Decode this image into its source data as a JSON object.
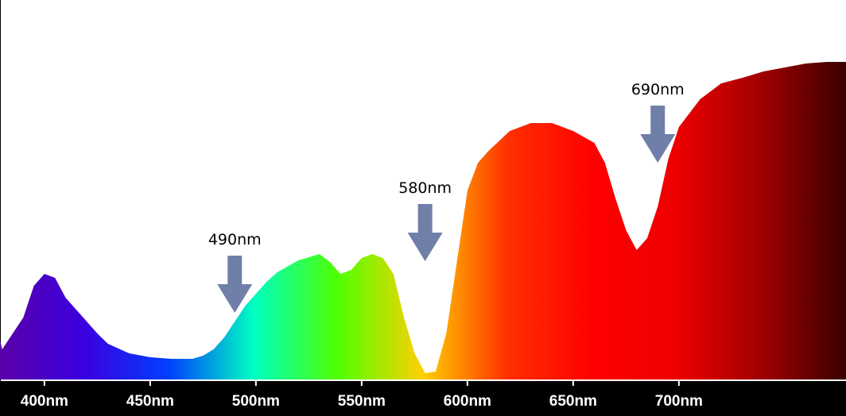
{
  "chart_data": {
    "type": "area",
    "x": [
      379,
      380,
      390,
      395,
      400,
      405,
      410,
      415,
      420,
      425,
      430,
      440,
      450,
      460,
      470,
      475,
      480,
      485,
      490,
      495,
      500,
      505,
      510,
      520,
      530,
      535,
      540,
      545,
      550,
      555,
      560,
      565,
      570,
      575,
      580,
      585,
      590,
      595,
      600,
      605,
      610,
      620,
      630,
      640,
      650,
      660,
      665,
      670,
      675,
      680,
      685,
      690,
      695,
      700,
      710,
      720,
      730,
      740,
      750,
      760,
      770,
      779
    ],
    "values": [
      50,
      38,
      78,
      118,
      133,
      128,
      103,
      88,
      73,
      58,
      45,
      33,
      28,
      26,
      26,
      30,
      38,
      53,
      73,
      93,
      108,
      123,
      135,
      150,
      158,
      148,
      133,
      138,
      153,
      158,
      153,
      133,
      78,
      33,
      8,
      10,
      58,
      148,
      238,
      273,
      288,
      313,
      323,
      323,
      313,
      298,
      273,
      228,
      188,
      163,
      178,
      218,
      278,
      318,
      353,
      373,
      380,
      388,
      393,
      398,
      400,
      400
    ],
    "xlim": [
      379,
      779
    ],
    "ylim": [
      0,
      478
    ],
    "xticks": [
      {
        "value": 400,
        "label": "400nm"
      },
      {
        "value": 450,
        "label": "450nm"
      },
      {
        "value": 500,
        "label": "500nm"
      },
      {
        "value": 550,
        "label": "550nm"
      },
      {
        "value": 600,
        "label": "600nm"
      },
      {
        "value": 650,
        "label": "650nm"
      },
      {
        "value": 700,
        "label": "700nm"
      }
    ],
    "colors": [
      "#5a00a8",
      "#3a00e0",
      "#0040ff",
      "#00ffc0",
      "#50ff00",
      "#ffd000",
      "#ff3000",
      "#ff0000",
      "#ee0000",
      "#a00000",
      "#3a0000"
    ],
    "arrow_color": "#6f7fa8",
    "annotations": [
      {
        "x": 490,
        "label": "490nm"
      },
      {
        "x": 580,
        "label": "580nm"
      },
      {
        "x": 690,
        "label": "690nm"
      }
    ]
  }
}
